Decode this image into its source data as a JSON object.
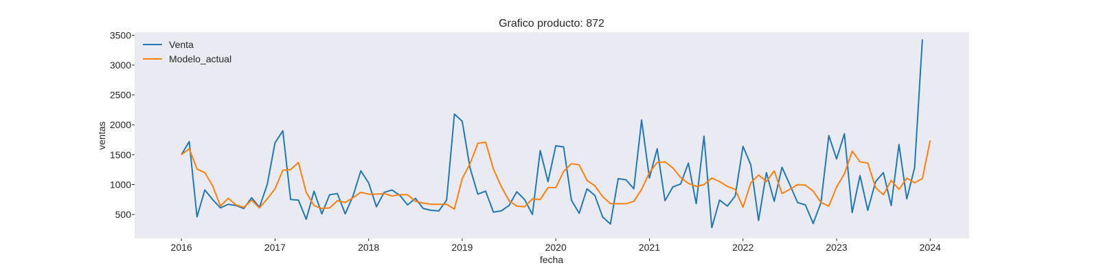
{
  "chart_data": {
    "type": "line",
    "title": "Grafico producto: 872",
    "xlabel": "fecha",
    "ylabel": "ventas",
    "grid": false,
    "legend_position": "top-left",
    "background_color": "#EAEAF2",
    "x_start": "2016-01",
    "x_end": "2023-12",
    "x_freq": "monthly",
    "x_ticks": [
      "2016",
      "2017",
      "2018",
      "2019",
      "2020",
      "2021",
      "2022",
      "2023",
      "2024"
    ],
    "xlim": [
      "2015-07",
      "2024-06"
    ],
    "y_ticks": [
      500,
      1000,
      1500,
      2000,
      2500,
      3000,
      3500
    ],
    "ylim": [
      100,
      3550
    ],
    "series": [
      {
        "name": "Venta",
        "color": "#1f77b4",
        "values": [
          1500,
          1720,
          460,
          910,
          750,
          610,
          670,
          650,
          600,
          780,
          620,
          1000,
          1700,
          1900,
          750,
          740,
          420,
          890,
          510,
          830,
          850,
          510,
          810,
          1230,
          1030,
          630,
          870,
          910,
          820,
          660,
          770,
          600,
          570,
          560,
          740,
          2180,
          2060,
          1280,
          840,
          890,
          540,
          560,
          650,
          880,
          750,
          500,
          1570,
          1050,
          1650,
          1630,
          740,
          520,
          930,
          820,
          460,
          340,
          1100,
          1080,
          930,
          2080,
          1110,
          1600,
          730,
          960,
          1010,
          1360,
          680,
          1810,
          280,
          740,
          640,
          810,
          1640,
          1330,
          400,
          1200,
          720,
          1290,
          1000,
          700,
          660,
          350,
          700,
          1820,
          1430,
          1850,
          530,
          1150,
          570,
          1050,
          1200,
          650,
          1670,
          760,
          1280,
          3430
        ]
      },
      {
        "name": "Modelo_actual",
        "color": "#ff7f0e",
        "values": [
          1500,
          1600,
          1260,
          1200,
          980,
          640,
          770,
          660,
          620,
          740,
          610,
          760,
          930,
          1240,
          1250,
          1370,
          870,
          650,
          600,
          610,
          730,
          700,
          780,
          870,
          840,
          840,
          850,
          810,
          830,
          830,
          720,
          690,
          670,
          670,
          670,
          590,
          1100,
          1350,
          1690,
          1710,
          1260,
          970,
          730,
          640,
          630,
          760,
          750,
          950,
          950,
          1220,
          1350,
          1330,
          1070,
          980,
          800,
          680,
          680,
          680,
          720,
          920,
          1200,
          1370,
          1380,
          1280,
          1120,
          1020,
          970,
          1000,
          1110,
          1050,
          970,
          920,
          620,
          1030,
          1160,
          1050,
          1230,
          850,
          920,
          1000,
          990,
          890,
          700,
          640,
          960,
          1180,
          1560,
          1380,
          1360,
          950,
          830,
          1070,
          920,
          1110,
          1030,
          1100,
          1740
        ]
      }
    ]
  }
}
